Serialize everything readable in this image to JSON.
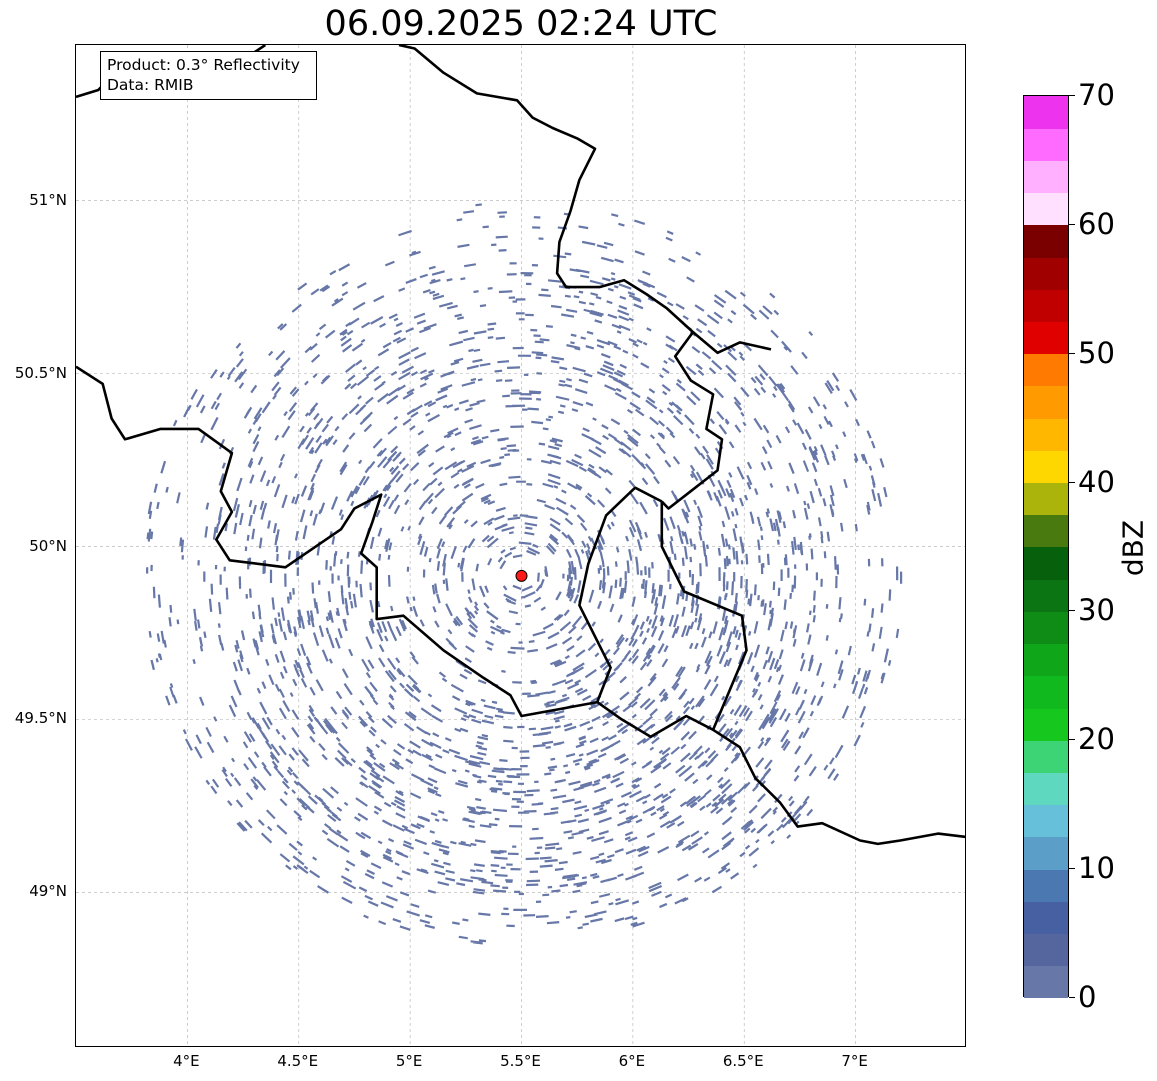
{
  "title": "06.09.2025 02:24 UTC",
  "info": {
    "product": "Product: 0.3° Reflectivity",
    "source": "Data: RMIB"
  },
  "map": {
    "lon_range": [
      3.5,
      7.5
    ],
    "lat_range": [
      48.55,
      51.45
    ],
    "lat_ticks": [
      {
        "value": 51.0,
        "label": "51°N"
      },
      {
        "value": 50.5,
        "label": "50.5°N"
      },
      {
        "value": 50.0,
        "label": "50°N"
      },
      {
        "value": 49.5,
        "label": "49.5°N"
      },
      {
        "value": 49.0,
        "label": "49°N"
      }
    ],
    "lon_ticks": [
      {
        "value": 4.0,
        "label": "4°E"
      },
      {
        "value": 4.5,
        "label": "4.5°E"
      },
      {
        "value": 5.0,
        "label": "5°E"
      },
      {
        "value": 5.5,
        "label": "5.5°E"
      },
      {
        "value": 6.0,
        "label": "6°E"
      },
      {
        "value": 6.5,
        "label": "6.5°E"
      },
      {
        "value": 7.0,
        "label": "7°E"
      }
    ],
    "gridlines": true,
    "radar_site": {
      "lon": 5.5,
      "lat": 49.915,
      "color": "#ff1a1a"
    },
    "echo_color": "#6677a8",
    "echo_range_deg": 1.0,
    "border_color": "#000000"
  },
  "colorbar": {
    "label": "dBZ",
    "min": 0,
    "max": 70,
    "step": 2.5,
    "ticks": [
      "0",
      "10",
      "20",
      "30",
      "40",
      "50",
      "60",
      "70"
    ],
    "colors": [
      "#6677a8",
      "#55669e",
      "#4660a2",
      "#4b78b0",
      "#5b9ec8",
      "#66c0da",
      "#5fd8c0",
      "#3dd475",
      "#16c81e",
      "#10b91e",
      "#10a61a",
      "#0e8c16",
      "#0a7512",
      "#06600c",
      "#487a10",
      "#aab40a",
      "#ffd700",
      "#ffb700",
      "#ff9a00",
      "#ff7a00",
      "#e00000",
      "#c00000",
      "#a00000",
      "#7a0000",
      "#ffe0ff",
      "#ffb0ff",
      "#ff6aff",
      "#ee33ee"
    ]
  }
}
